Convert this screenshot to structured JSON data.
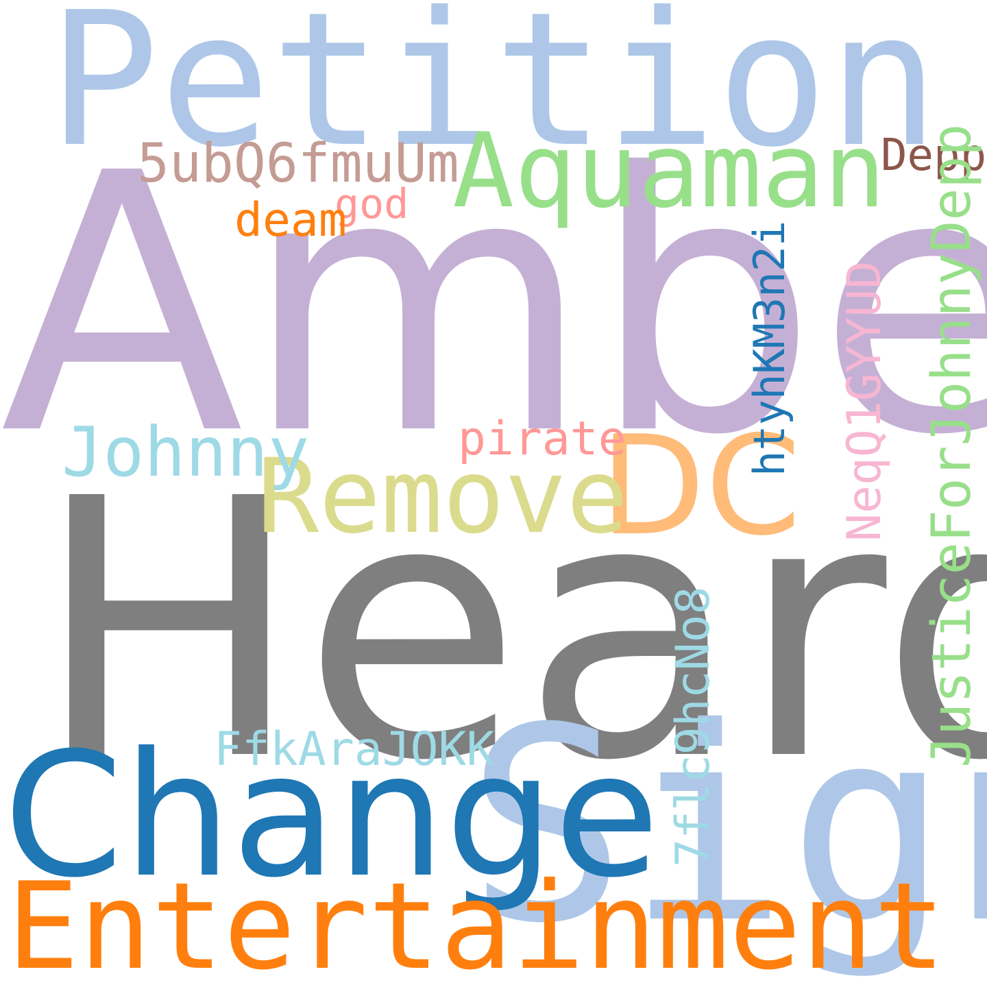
{
  "words": [
    {
      "id": "petition",
      "text": "Petition",
      "color": "#aec7e8"
    },
    {
      "id": "amber",
      "text": "Amber",
      "color": "#c5b0d5"
    },
    {
      "id": "heard",
      "text": "Heard",
      "color": "#7f7f7f"
    },
    {
      "id": "sign",
      "text": "Sign",
      "color": "#aec7e8"
    },
    {
      "id": "change",
      "text": "Change",
      "color": "#1f77b4"
    },
    {
      "id": "entertainment",
      "text": "Entertainment",
      "color": "#ff7f0e"
    },
    {
      "id": "aquaman",
      "text": "Aquaman",
      "color": "#98df8a"
    },
    {
      "id": "dc",
      "text": "DC",
      "color": "#ffbb78"
    },
    {
      "id": "remove",
      "text": "Remove",
      "color": "#dbdb8d"
    },
    {
      "id": "johnny",
      "text": "Johnny",
      "color": "#9edae5"
    },
    {
      "id": "sub",
      "text": "5ubQ6fmuUm",
      "color": "#c49c94"
    },
    {
      "id": "depp",
      "text": "Depp",
      "color": "#8c564b"
    },
    {
      "id": "god",
      "text": "god",
      "color": "#ff9896"
    },
    {
      "id": "deam",
      "text": "deam",
      "color": "#ff7f0e"
    },
    {
      "id": "pirate",
      "text": "pirate",
      "color": "#ff9896"
    },
    {
      "id": "ffk",
      "text": "FfkAraJOKK",
      "color": "#9edae5"
    },
    {
      "id": "htyh",
      "text": "htyhKM3n2i",
      "color": "#1f77b4"
    },
    {
      "id": "neq",
      "text": "NeqQ1GYYUD",
      "color": "#f7b6d2"
    },
    {
      "id": "justice",
      "text": "JusticeForJohnnyDepp",
      "color": "#98df8a"
    },
    {
      "id": "7fl",
      "text": "7flc9hcNo8",
      "color": "#9edae5"
    }
  ]
}
